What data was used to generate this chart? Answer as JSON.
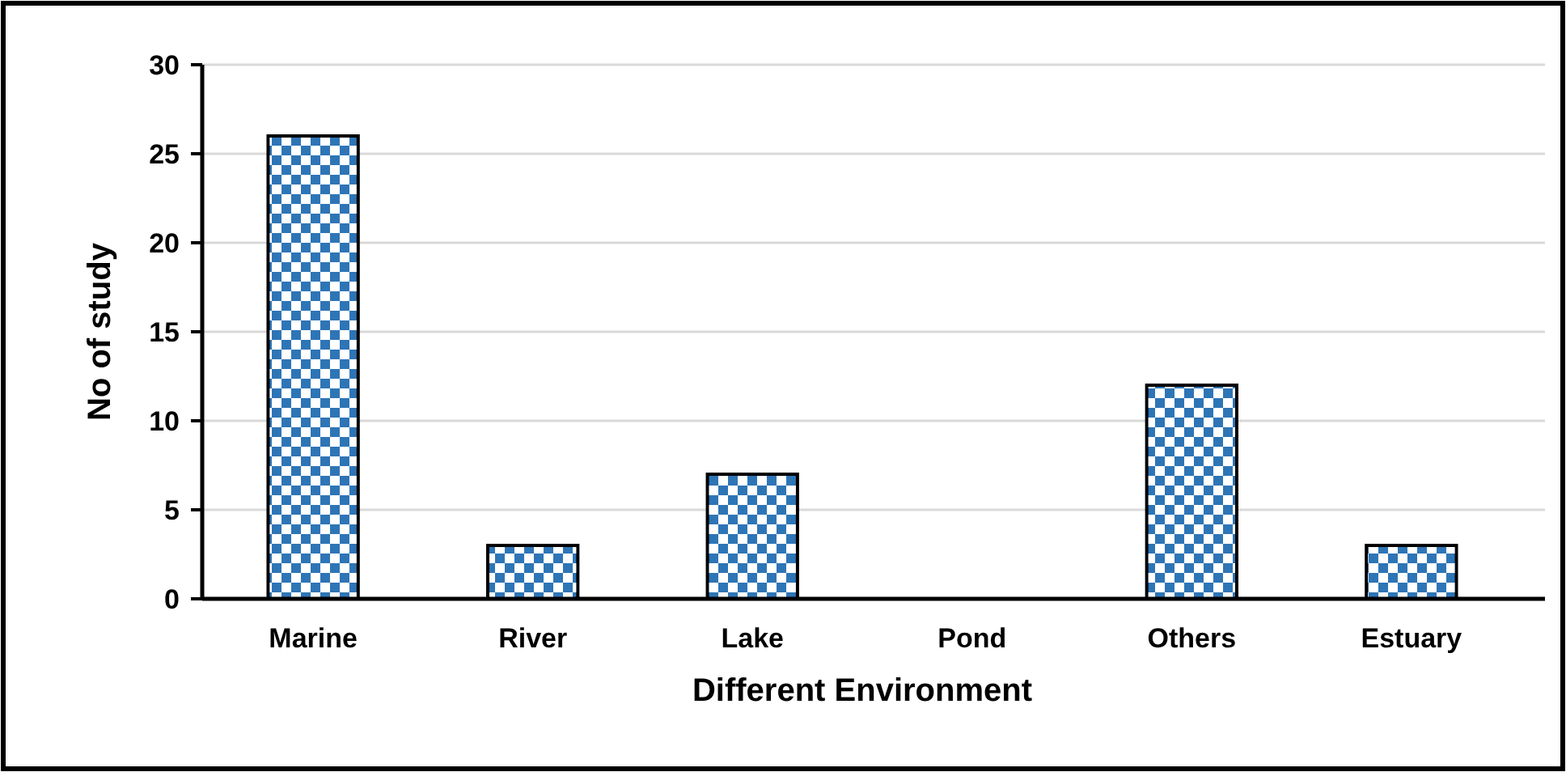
{
  "chart_data": {
    "type": "bar",
    "xlabel": "Different Environment",
    "ylabel": "No of study",
    "categories": [
      "Marine",
      "River",
      "Lake",
      "Pond",
      "Others",
      "Estuary"
    ],
    "values": [
      26,
      3,
      7,
      0,
      12,
      3
    ],
    "color": "#2e75b6",
    "ylim": [
      0,
      30
    ],
    "yticks": [
      0,
      5,
      10,
      15,
      20,
      25,
      30
    ],
    "grid": "y"
  }
}
